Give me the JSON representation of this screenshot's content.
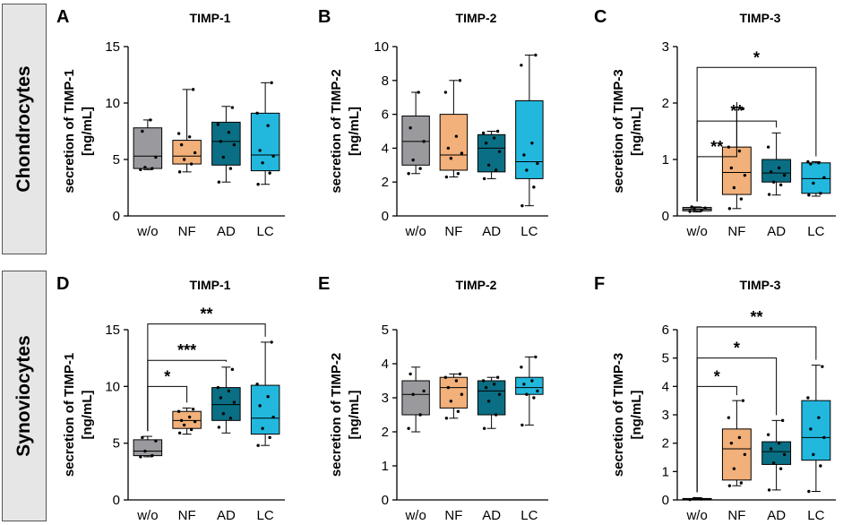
{
  "row_labels": [
    "Chondrocytes",
    "Synoviocytes"
  ],
  "colors": {
    "w/o": "#9a9a9e",
    "NF": "#f2b07a",
    "AD": "#0a6f84",
    "LC": "#22b8de"
  },
  "chart_data": [
    {
      "panel": "A",
      "type": "box",
      "title": "TIMP-1",
      "ylabel": [
        "secretion of TIMP-1",
        "[ng/mL]"
      ],
      "categories": [
        "w/o",
        "NF",
        "AD",
        "LC"
      ],
      "ylim": [
        0,
        15
      ],
      "yticks": [
        0,
        5,
        10,
        15
      ],
      "boxes": [
        {
          "min": 4.1,
          "q1": 4.2,
          "median": 5.3,
          "q3": 7.8,
          "max": 8.5,
          "points": [
            4.1,
            4.2,
            4.3,
            5.2,
            7.5,
            8.5
          ]
        },
        {
          "min": 3.9,
          "q1": 4.6,
          "median": 5.3,
          "q3": 6.7,
          "max": 11.2,
          "points": [
            3.9,
            4.6,
            5.0,
            5.6,
            6.3,
            7.0,
            7.3,
            11.2
          ]
        },
        {
          "min": 3.0,
          "q1": 4.5,
          "median": 6.6,
          "q3": 8.3,
          "max": 9.7,
          "points": [
            3.0,
            4.2,
            5.2,
            6.3,
            6.6,
            7.4,
            8.1,
            9.6
          ]
        },
        {
          "min": 2.8,
          "q1": 4.0,
          "median": 5.4,
          "q3": 9.1,
          "max": 11.8,
          "points": [
            2.8,
            3.8,
            4.7,
            5.3,
            5.8,
            8.0,
            9.1,
            11.8
          ]
        }
      ],
      "significance": []
    },
    {
      "panel": "B",
      "type": "box",
      "title": "TIMP-2",
      "ylabel": [
        "secretion of TIMP-2",
        "[ng/mL]"
      ],
      "categories": [
        "w/o",
        "NF",
        "AD",
        "LC"
      ],
      "ylim": [
        0,
        10
      ],
      "yticks": [
        0,
        2,
        4,
        6,
        8,
        10
      ],
      "boxes": [
        {
          "min": 2.5,
          "q1": 3.0,
          "median": 4.4,
          "q3": 5.9,
          "max": 7.3,
          "points": [
            2.5,
            2.8,
            3.3,
            4.4,
            5.2,
            7.3
          ]
        },
        {
          "min": 2.3,
          "q1": 2.7,
          "median": 3.6,
          "q3": 6.0,
          "max": 8.0,
          "points": [
            2.3,
            2.5,
            3.4,
            3.7,
            4.0,
            4.7,
            7.3,
            8.0
          ]
        },
        {
          "min": 2.2,
          "q1": 2.6,
          "median": 4.0,
          "q3": 4.8,
          "max": 5.0,
          "points": [
            2.2,
            2.7,
            3.0,
            3.8,
            4.3,
            4.6,
            4.9,
            5.0
          ]
        },
        {
          "min": 0.6,
          "q1": 2.2,
          "median": 3.2,
          "q3": 6.8,
          "max": 9.5,
          "points": [
            0.6,
            1.7,
            2.7,
            3.1,
            3.6,
            4.3,
            8.9,
            9.5
          ]
        }
      ],
      "significance": []
    },
    {
      "panel": "C",
      "type": "box",
      "title": "TIMP-3",
      "ylabel": [
        "secretion of TIMP-3",
        "[ng/mL]"
      ],
      "categories": [
        "w/o",
        "NF",
        "AD",
        "LC"
      ],
      "ylim": [
        0,
        3
      ],
      "yticks": [
        0,
        1,
        2,
        3
      ],
      "boxes": [
        {
          "min": 0.07,
          "q1": 0.09,
          "median": 0.12,
          "q3": 0.15,
          "max": 0.16,
          "points": [
            0.08,
            0.1,
            0.12,
            0.14,
            0.16
          ]
        },
        {
          "min": 0.13,
          "q1": 0.38,
          "median": 0.77,
          "q3": 1.22,
          "max": 1.92,
          "points": [
            0.13,
            0.3,
            0.5,
            0.72,
            0.85,
            1.15,
            1.22,
            1.9
          ]
        },
        {
          "min": 0.37,
          "q1": 0.6,
          "median": 0.76,
          "q3": 1.0,
          "max": 1.47,
          "points": [
            0.38,
            0.55,
            0.6,
            0.72,
            0.78,
            0.85,
            1.22
          ]
        },
        {
          "min": 0.35,
          "q1": 0.4,
          "median": 0.66,
          "q3": 0.94,
          "max": 0.96,
          "points": [
            0.37,
            0.4,
            0.58,
            0.68,
            0.92,
            0.94,
            0.96
          ]
        }
      ],
      "significance": [
        {
          "from": "w/o",
          "to": "NF",
          "level": 1.05,
          "label": "**"
        },
        {
          "from": "w/o",
          "to": "AD",
          "level": 1.68,
          "label": "**"
        },
        {
          "from": "w/o",
          "to": "LC",
          "level": 2.63,
          "label": "*"
        }
      ]
    },
    {
      "panel": "D",
      "type": "box",
      "title": "TIMP-1",
      "ylabel": [
        "secretion of TIMP-1",
        "[ng/mL]"
      ],
      "categories": [
        "w/o",
        "NF",
        "AD",
        "LC"
      ],
      "ylim": [
        0,
        15
      ],
      "yticks": [
        0,
        5,
        10,
        15
      ],
      "boxes": [
        {
          "min": 3.8,
          "q1": 3.9,
          "median": 4.3,
          "q3": 5.3,
          "max": 5.6,
          "points": [
            3.8,
            3.9,
            4.3,
            5.2,
            5.5
          ]
        },
        {
          "min": 5.8,
          "q1": 6.3,
          "median": 7.0,
          "q3": 7.8,
          "max": 8.1,
          "points": [
            5.9,
            6.2,
            6.6,
            6.9,
            7.0,
            7.3,
            7.8,
            8.0
          ]
        },
        {
          "min": 5.9,
          "q1": 7.0,
          "median": 8.4,
          "q3": 9.9,
          "max": 11.7,
          "points": [
            6.4,
            7.2,
            7.6,
            8.6,
            9.0,
            9.6,
            9.9,
            11.5
          ]
        },
        {
          "min": 4.8,
          "q1": 5.8,
          "median": 7.2,
          "q3": 10.1,
          "max": 13.9,
          "points": [
            4.8,
            5.5,
            6.3,
            7.3,
            8.3,
            9.1,
            10.2,
            13.9
          ]
        }
      ],
      "significance": [
        {
          "from": "w/o",
          "to": "NF",
          "level": 10.0,
          "label": "*"
        },
        {
          "from": "w/o",
          "to": "AD",
          "level": 12.3,
          "label": "***"
        },
        {
          "from": "w/o",
          "to": "LC",
          "level": 15.5,
          "label": "**"
        }
      ]
    },
    {
      "panel": "E",
      "type": "box",
      "title": "TIMP-2",
      "ylabel": [
        "secretion of TIMP-2",
        "[ng/mL]"
      ],
      "categories": [
        "w/o",
        "NF",
        "AD",
        "LC"
      ],
      "ylim": [
        0,
        5
      ],
      "yticks": [
        0,
        1,
        2,
        3,
        4,
        5
      ],
      "boxes": [
        {
          "min": 2.0,
          "q1": 2.5,
          "median": 3.1,
          "q3": 3.5,
          "max": 3.9,
          "points": [
            2.1,
            2.5,
            3.1,
            3.2,
            3.7
          ]
        },
        {
          "min": 2.4,
          "q1": 2.7,
          "median": 3.3,
          "q3": 3.6,
          "max": 3.7,
          "points": [
            2.4,
            2.6,
            2.9,
            3.1,
            3.3,
            3.5,
            3.6,
            3.7
          ]
        },
        {
          "min": 2.1,
          "q1": 2.5,
          "median": 3.2,
          "q3": 3.5,
          "max": 3.6,
          "points": [
            2.1,
            2.5,
            2.9,
            3.1,
            3.3,
            3.4,
            3.5,
            3.6
          ]
        },
        {
          "min": 2.2,
          "q1": 3.1,
          "median": 3.3,
          "q3": 3.6,
          "max": 4.2,
          "points": [
            2.2,
            3.0,
            3.1,
            3.2,
            3.4,
            3.5,
            3.9,
            4.2
          ]
        }
      ],
      "significance": []
    },
    {
      "panel": "F",
      "type": "box",
      "title": "TIMP-3",
      "ylabel": [
        "secretion of TIMP-3",
        "[ng/mL]"
      ],
      "categories": [
        "w/o",
        "NF",
        "AD",
        "LC"
      ],
      "ylim": [
        0,
        6
      ],
      "yticks": [
        0,
        1,
        2,
        3,
        4,
        5,
        6
      ],
      "boxes": [
        {
          "min": 0.0,
          "q1": 0.01,
          "median": 0.03,
          "q3": 0.05,
          "max": 0.08,
          "points": [
            0.01,
            0.03,
            0.05
          ]
        },
        {
          "min": 0.5,
          "q1": 0.7,
          "median": 1.8,
          "q3": 2.5,
          "max": 3.5,
          "points": [
            0.5,
            0.6,
            1.1,
            1.6,
            2.0,
            2.2,
            2.9,
            3.5
          ]
        },
        {
          "min": 0.35,
          "q1": 1.25,
          "median": 1.7,
          "q3": 2.05,
          "max": 2.8,
          "points": [
            0.35,
            1.1,
            1.3,
            1.6,
            1.8,
            2.0,
            2.3,
            2.8
          ]
        },
        {
          "min": 0.3,
          "q1": 1.4,
          "median": 2.2,
          "q3": 3.5,
          "max": 4.75,
          "points": [
            0.3,
            1.2,
            1.6,
            2.2,
            2.5,
            2.9,
            3.6,
            4.7
          ]
        }
      ],
      "significance": [
        {
          "from": "w/o",
          "to": "NF",
          "level": 4.0,
          "label": "*"
        },
        {
          "from": "w/o",
          "to": "AD",
          "level": 5.0,
          "label": "*"
        },
        {
          "from": "w/o",
          "to": "LC",
          "level": 6.1,
          "label": "**"
        }
      ]
    }
  ]
}
